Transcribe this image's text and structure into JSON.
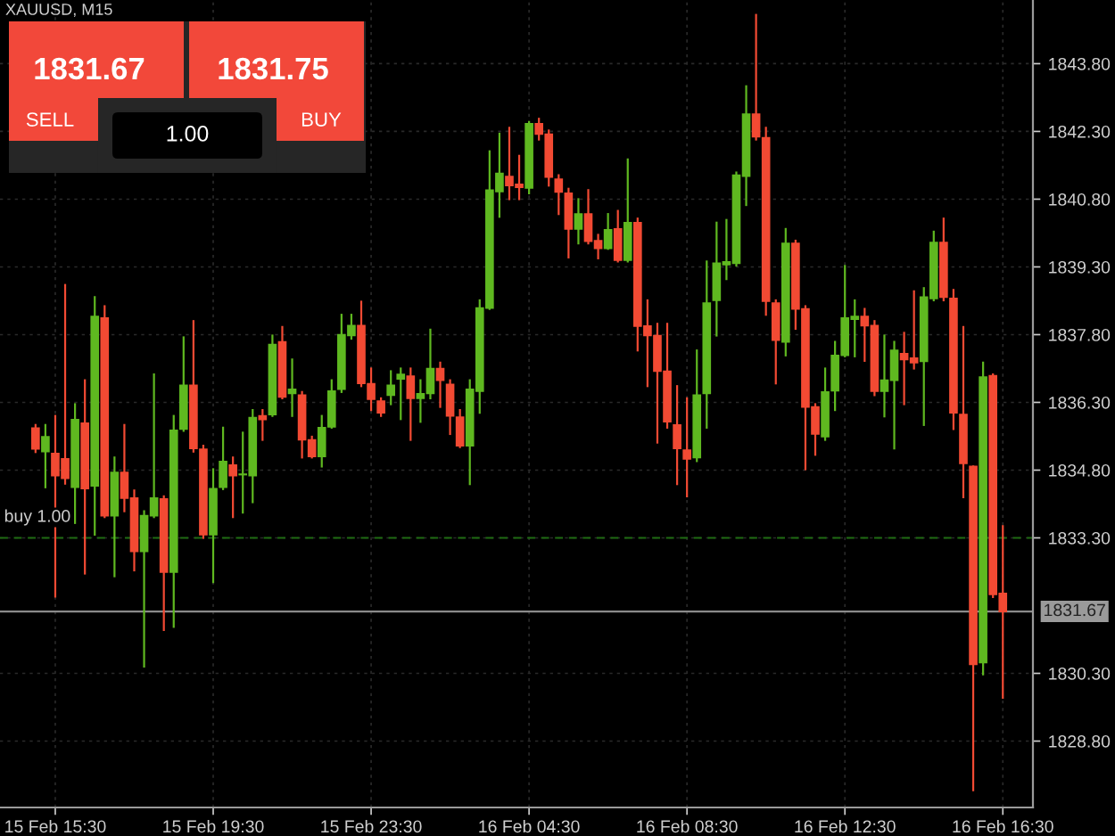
{
  "chart_data": {
    "type": "candlestick",
    "title": "XAUUSD, M15",
    "categories": [
      null,
      null,
      "15 Feb 15:30",
      null,
      null,
      null,
      null,
      null,
      null,
      null,
      null,
      null,
      null,
      null,
      null,
      null,
      null,
      null,
      "15 Feb 19:30",
      null,
      null,
      null,
      null,
      null,
      null,
      null,
      null,
      null,
      null,
      null,
      null,
      null,
      null,
      null,
      "15 Feb 23:30",
      null,
      null,
      null,
      null,
      null,
      null,
      null,
      null,
      null,
      null,
      null,
      null,
      null,
      null,
      null,
      "16 Feb 04:30",
      null,
      null,
      null,
      null,
      null,
      null,
      null,
      null,
      null,
      null,
      null,
      null,
      null,
      null,
      null,
      "16 Feb 08:30",
      null,
      null,
      null,
      null,
      null,
      null,
      null,
      null,
      null,
      null,
      null,
      null,
      null,
      null,
      null,
      "16 Feb 12:30",
      null,
      null,
      null,
      null,
      null,
      null,
      null,
      null,
      null,
      null,
      null,
      null,
      null,
      null,
      null,
      "16 Feb 16:30"
    ],
    "ohlc": [
      [
        1835.73,
        1835.8,
        1835.2,
        1835.27
      ],
      [
        1835.21,
        1835.8,
        1834.42,
        1835.54
      ],
      [
        1835.17,
        1836.0,
        1832.0,
        1834.68
      ],
      [
        1835.05,
        1838.9,
        1834.5,
        1834.62
      ],
      [
        1834.42,
        1836.26,
        1833.63,
        1835.92
      ],
      [
        1835.84,
        1836.79,
        1832.51,
        1834.39
      ],
      [
        1834.45,
        1838.63,
        1833.37,
        1838.2
      ],
      [
        1838.17,
        1838.43,
        1833.76,
        1833.79
      ],
      [
        1833.79,
        1835.08,
        1832.45,
        1834.75
      ],
      [
        1834.75,
        1835.8,
        1833.89,
        1834.18
      ],
      [
        1834.18,
        1834.35,
        1832.58,
        1833.0
      ],
      [
        1833.0,
        1833.89,
        1830.45,
        1833.79
      ],
      [
        1833.79,
        1836.92,
        1833.76,
        1834.18
      ],
      [
        1834.16,
        1834.22,
        1831.26,
        1832.54
      ],
      [
        1832.54,
        1836.0,
        1831.33,
        1835.68
      ],
      [
        1835.71,
        1837.74,
        1835.67,
        1836.68
      ],
      [
        1836.68,
        1838.1,
        1835.21,
        1835.28
      ],
      [
        1835.26,
        1835.34,
        1833.3,
        1833.37
      ],
      [
        1833.37,
        1834.82,
        1832.32,
        1834.39
      ],
      [
        1834.42,
        1835.74,
        1834.38,
        1834.99
      ],
      [
        1834.91,
        1835.08,
        1833.76,
        1834.68
      ],
      [
        1834.7,
        1835.63,
        1833.86,
        1834.71
      ],
      [
        1834.68,
        1836.13,
        1834.09,
        1835.96
      ],
      [
        1836.0,
        1836.13,
        1835.47,
        1835.92
      ],
      [
        1836.03,
        1837.78,
        1836.0,
        1837.58
      ],
      [
        1837.64,
        1837.97,
        1836.39,
        1836.42
      ],
      [
        1836.5,
        1837.25,
        1836.0,
        1836.59
      ],
      [
        1836.46,
        1836.53,
        1835.08,
        1835.47
      ],
      [
        1835.47,
        1835.54,
        1835.08,
        1835.1
      ],
      [
        1835.1,
        1836.0,
        1834.88,
        1835.74
      ],
      [
        1835.76,
        1836.79,
        1835.74,
        1836.55
      ],
      [
        1836.59,
        1838.24,
        1836.53,
        1837.8
      ],
      [
        1837.78,
        1838.24,
        1837.71,
        1838.0
      ],
      [
        1838.0,
        1838.53,
        1836.66,
        1836.72
      ],
      [
        1836.71,
        1837.05,
        1836.13,
        1836.37
      ],
      [
        1836.33,
        1836.39,
        1836.0,
        1836.07
      ],
      [
        1836.46,
        1836.99,
        1836.26,
        1836.68
      ],
      [
        1836.82,
        1837.05,
        1835.93,
        1836.92
      ],
      [
        1836.88,
        1837.05,
        1835.47,
        1836.39
      ],
      [
        1836.39,
        1836.79,
        1835.87,
        1836.49
      ],
      [
        1836.5,
        1837.91,
        1836.39,
        1837.05
      ],
      [
        1837.05,
        1837.18,
        1836.2,
        1836.79
      ],
      [
        1836.7,
        1836.79,
        1835.6,
        1836.0
      ],
      [
        1835.97,
        1836.13,
        1835.31,
        1835.34
      ],
      [
        1835.34,
        1836.79,
        1834.49,
        1836.59
      ],
      [
        1836.55,
        1838.56,
        1836.07,
        1838.39
      ],
      [
        1838.39,
        1841.86,
        1838.37,
        1841.0
      ],
      [
        1840.97,
        1842.25,
        1840.41,
        1841.37
      ],
      [
        1841.3,
        1842.38,
        1840.8,
        1841.1
      ],
      [
        1841.13,
        1841.76,
        1840.8,
        1841.06
      ],
      [
        1841.05,
        1842.51,
        1840.93,
        1842.47
      ],
      [
        1842.47,
        1842.58,
        1842.12,
        1842.24
      ],
      [
        1842.24,
        1842.32,
        1841.1,
        1841.29
      ],
      [
        1841.24,
        1841.33,
        1840.47,
        1840.96
      ],
      [
        1840.93,
        1841.03,
        1839.51,
        1840.14
      ],
      [
        1840.14,
        1840.8,
        1839.82,
        1840.47
      ],
      [
        1840.47,
        1841.0,
        1839.82,
        1839.87
      ],
      [
        1839.88,
        1840.01,
        1839.49,
        1839.71
      ],
      [
        1839.71,
        1840.47,
        1839.7,
        1840.12
      ],
      [
        1840.14,
        1840.54,
        1839.42,
        1839.45
      ],
      [
        1839.45,
        1841.68,
        1839.42,
        1840.28
      ],
      [
        1840.28,
        1840.37,
        1837.45,
        1837.99
      ],
      [
        1837.99,
        1838.56,
        1836.66,
        1837.78
      ],
      [
        1837.78,
        1838.04,
        1835.41,
        1836.99
      ],
      [
        1836.99,
        1838.04,
        1835.74,
        1835.87
      ],
      [
        1835.8,
        1836.66,
        1834.49,
        1835.28
      ],
      [
        1835.24,
        1836.39,
        1834.22,
        1835.05
      ],
      [
        1835.08,
        1837.45,
        1835.0,
        1836.46
      ],
      [
        1836.5,
        1839.42,
        1835.74,
        1838.5
      ],
      [
        1838.56,
        1840.28,
        1837.78,
        1839.38
      ],
      [
        1839.35,
        1840.34,
        1839.03,
        1839.41
      ],
      [
        1839.38,
        1841.39,
        1839.33,
        1841.33
      ],
      [
        1841.31,
        1843.3,
        1840.67,
        1842.68
      ],
      [
        1842.68,
        1844.88,
        1842.12,
        1842.18
      ],
      [
        1842.16,
        1842.38,
        1838.24,
        1838.54
      ],
      [
        1838.5,
        1838.56,
        1836.72,
        1837.68
      ],
      [
        1837.64,
        1840.14,
        1837.34,
        1839.82
      ],
      [
        1839.82,
        1839.88,
        1837.93,
        1838.37
      ],
      [
        1838.37,
        1838.43,
        1834.82,
        1836.2
      ],
      [
        1836.2,
        1836.26,
        1835.14,
        1835.6
      ],
      [
        1835.54,
        1837.05,
        1835.47,
        1836.53
      ],
      [
        1836.56,
        1837.64,
        1836.13,
        1837.34
      ],
      [
        1837.34,
        1839.32,
        1837.32,
        1838.17
      ],
      [
        1838.14,
        1838.56,
        1837.32,
        1838.2
      ],
      [
        1838.2,
        1838.37,
        1837.22,
        1838.0
      ],
      [
        1838.0,
        1838.1,
        1836.46,
        1836.55
      ],
      [
        1836.55,
        1837.78,
        1835.99,
        1836.79
      ],
      [
        1836.79,
        1837.64,
        1835.28,
        1837.45
      ],
      [
        1837.38,
        1837.84,
        1836.26,
        1837.25
      ],
      [
        1837.28,
        1838.76,
        1837.05,
        1837.18
      ],
      [
        1837.21,
        1838.83,
        1835.8,
        1838.63
      ],
      [
        1838.6,
        1840.08,
        1838.56,
        1839.84
      ],
      [
        1839.84,
        1840.37,
        1838.56,
        1838.63
      ],
      [
        1838.6,
        1838.79,
        1835.71,
        1836.07
      ],
      [
        1836.03,
        1837.97,
        1834.2,
        1834.95
      ],
      [
        1834.88,
        1834.88,
        1827.71,
        1830.5
      ],
      [
        1830.54,
        1837.18,
        1830.28,
        1836.86
      ],
      [
        1836.89,
        1836.92,
        1831.99,
        1832.05
      ],
      [
        1832.07,
        1833.56,
        1829.76,
        1831.67
      ]
    ],
    "colors": [
      "#f24a33",
      "#5fb820",
      "#f24a33",
      "#f24a33",
      "#5fb820",
      "#f24a33",
      "#5fb820",
      "#f24a33",
      "#5fb820",
      "#f24a33",
      "#f24a33",
      "#5fb820",
      "#5fb820",
      "#f24a33",
      "#5fb820",
      "#5fb820",
      "#f24a33",
      "#f24a33",
      "#5fb820",
      "#5fb820",
      "#f24a33",
      "#5fb820",
      "#5fb820",
      "#f24a33",
      "#5fb820",
      "#f24a33",
      "#5fb820",
      "#f24a33",
      "#f24a33",
      "#5fb820",
      "#5fb820",
      "#5fb820",
      "#5fb820",
      "#f24a33",
      "#f24a33",
      "#f24a33",
      "#5fb820",
      "#5fb820",
      "#f24a33",
      "#5fb820",
      "#5fb820",
      "#f24a33",
      "#f24a33",
      "#f24a33",
      "#5fb820",
      "#5fb820",
      "#5fb820",
      "#5fb820",
      "#f24a33",
      "#f24a33",
      "#5fb820",
      "#f24a33",
      "#f24a33",
      "#f24a33",
      "#f24a33",
      "#5fb820",
      "#f24a33",
      "#f24a33",
      "#5fb820",
      "#f24a33",
      "#5fb820",
      "#f24a33",
      "#f24a33",
      "#f24a33",
      "#f24a33",
      "#f24a33",
      "#f24a33",
      "#5fb820",
      "#5fb820",
      "#5fb820",
      "#5fb820",
      "#5fb820",
      "#5fb820",
      "#f24a33",
      "#f24a33",
      "#f24a33",
      "#5fb820",
      "#f24a33",
      "#f24a33",
      "#f24a33",
      "#5fb820",
      "#5fb820",
      "#5fb820",
      "#5fb820",
      "#f24a33",
      "#f24a33",
      "#5fb820",
      "#5fb820",
      "#f24a33",
      "#f24a33",
      "#5fb820",
      "#5fb820",
      "#f24a33",
      "#f24a33",
      "#f24a33",
      "#f24a33",
      "#5fb820",
      "#f24a33",
      "#f24a33"
    ],
    "ylim": [
      1827.33,
      1845.21
    ],
    "yticks": [
      {
        "value": 1828.8,
        "label": "1828.80"
      },
      {
        "value": 1830.3,
        "label": "1830.30"
      },
      {
        "value": 1833.3,
        "label": "1833.30"
      },
      {
        "value": 1834.8,
        "label": "1834.80"
      },
      {
        "value": 1836.3,
        "label": "1836.30"
      },
      {
        "value": 1837.8,
        "label": "1837.80"
      },
      {
        "value": 1839.3,
        "label": "1839.30"
      },
      {
        "value": 1840.8,
        "label": "1840.80"
      },
      {
        "value": 1842.3,
        "label": "1842.30"
      },
      {
        "value": 1843.8,
        "label": "1843.80"
      }
    ],
    "ref_lines": [
      {
        "axis": "y",
        "value": 1833.3,
        "label": "buy 1.00",
        "color": "#1f6b12",
        "line_style": "dashed"
      },
      {
        "axis": "y",
        "value": 1831.67,
        "label": "1831.67",
        "color": "#8a8a8a",
        "line_style": "solid"
      }
    ],
    "grid": true,
    "annotations": [
      "1831.67",
      "SELL",
      "1.00",
      "1831.75",
      "BUY"
    ]
  }
}
